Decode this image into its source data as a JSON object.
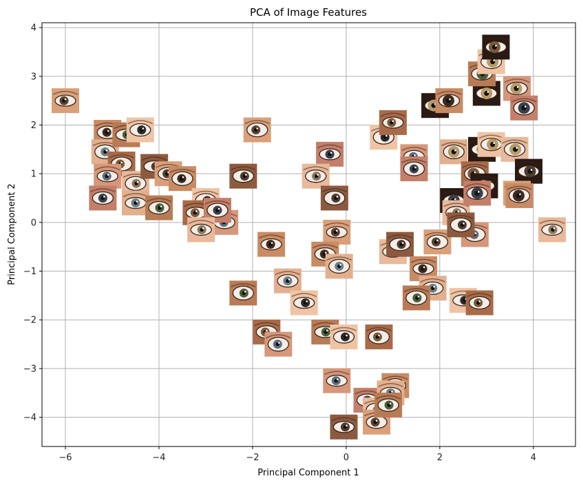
{
  "chart_data": {
    "type": "scatter",
    "title": "PCA of Image Features",
    "xlabel": "Principal Component 1",
    "ylabel": "Principal Component 2",
    "xlim": [
      -6.5,
      4.9
    ],
    "ylim": [
      -4.6,
      4.1
    ],
    "xticks": [
      -6,
      -4,
      -2,
      0,
      2,
      4
    ],
    "yticks": [
      -4,
      -3,
      -2,
      -1,
      0,
      1,
      2,
      3,
      4
    ],
    "grid": true,
    "marker": "eye-image-thumbnail",
    "points": [
      {
        "x": -6.0,
        "y": 2.5
      },
      {
        "x": -5.1,
        "y": 1.85
      },
      {
        "x": -5.15,
        "y": 1.45
      },
      {
        "x": -4.7,
        "y": 1.8
      },
      {
        "x": -4.4,
        "y": 1.9
      },
      {
        "x": -4.8,
        "y": 1.2
      },
      {
        "x": -5.1,
        "y": 0.95
      },
      {
        "x": -5.2,
        "y": 0.5
      },
      {
        "x": -4.5,
        "y": 0.8
      },
      {
        "x": -4.1,
        "y": 1.15
      },
      {
        "x": -3.8,
        "y": 1.0
      },
      {
        "x": -3.5,
        "y": 0.9
      },
      {
        "x": -4.5,
        "y": 0.4
      },
      {
        "x": -4.0,
        "y": 0.3
      },
      {
        "x": -3.0,
        "y": 0.45
      },
      {
        "x": -3.2,
        "y": 0.2
      },
      {
        "x": -2.6,
        "y": 0.0
      },
      {
        "x": -2.75,
        "y": 0.25
      },
      {
        "x": -3.1,
        "y": -0.15
      },
      {
        "x": -2.2,
        "y": 0.95
      },
      {
        "x": -1.9,
        "y": 1.9
      },
      {
        "x": -1.6,
        "y": -0.45
      },
      {
        "x": -1.25,
        "y": -1.2
      },
      {
        "x": -2.2,
        "y": -1.45
      },
      {
        "x": -0.9,
        "y": -1.65
      },
      {
        "x": -1.7,
        "y": -2.25
      },
      {
        "x": -1.45,
        "y": -2.5
      },
      {
        "x": -0.35,
        "y": 1.4
      },
      {
        "x": -0.65,
        "y": 0.95
      },
      {
        "x": -0.25,
        "y": 0.5
      },
      {
        "x": -0.2,
        "y": -0.2
      },
      {
        "x": -0.45,
        "y": -0.65
      },
      {
        "x": -0.15,
        "y": -0.9
      },
      {
        "x": -0.45,
        "y": -2.25
      },
      {
        "x": -0.05,
        "y": -2.35
      },
      {
        "x": 0.7,
        "y": -2.35
      },
      {
        "x": -0.2,
        "y": -3.25
      },
      {
        "x": 0.45,
        "y": -3.65
      },
      {
        "x": 0.65,
        "y": -3.85
      },
      {
        "x": -0.05,
        "y": -4.2
      },
      {
        "x": 0.65,
        "y": -4.1
      },
      {
        "x": 1.05,
        "y": -3.35
      },
      {
        "x": 0.95,
        "y": -3.5
      },
      {
        "x": 0.9,
        "y": -3.75
      },
      {
        "x": 0.8,
        "y": 1.75
      },
      {
        "x": 1.0,
        "y": 2.05
      },
      {
        "x": 1.45,
        "y": 1.35
      },
      {
        "x": 1.45,
        "y": 1.1
      },
      {
        "x": 1.0,
        "y": -0.6
      },
      {
        "x": 1.15,
        "y": -0.45
      },
      {
        "x": 1.95,
        "y": -0.4
      },
      {
        "x": 1.65,
        "y": -0.95
      },
      {
        "x": 1.85,
        "y": -1.35
      },
      {
        "x": 1.5,
        "y": -1.55
      },
      {
        "x": 2.5,
        "y": -1.6
      },
      {
        "x": 2.85,
        "y": -1.65
      },
      {
        "x": 2.75,
        "y": -0.25
      },
      {
        "x": 2.3,
        "y": 0.45
      },
      {
        "x": 2.35,
        "y": 0.2
      },
      {
        "x": 2.45,
        "y": -0.05
      },
      {
        "x": 1.9,
        "y": 2.4
      },
      {
        "x": 2.2,
        "y": 2.5
      },
      {
        "x": 2.3,
        "y": 1.45
      },
      {
        "x": 2.9,
        "y": 1.5
      },
      {
        "x": 3.1,
        "y": 1.6
      },
      {
        "x": 2.75,
        "y": 1.0
      },
      {
        "x": 2.95,
        "y": 0.75
      },
      {
        "x": 2.8,
        "y": 0.6
      },
      {
        "x": 3.6,
        "y": 1.5
      },
      {
        "x": 3.9,
        "y": 1.05
      },
      {
        "x": 3.65,
        "y": 0.6
      },
      {
        "x": 3.7,
        "y": 0.55
      },
      {
        "x": 3.0,
        "y": 2.65
      },
      {
        "x": 2.9,
        "y": 3.05
      },
      {
        "x": 3.1,
        "y": 3.3
      },
      {
        "x": 3.2,
        "y": 3.6
      },
      {
        "x": 3.65,
        "y": 2.75
      },
      {
        "x": 3.8,
        "y": 2.35
      },
      {
        "x": 4.4,
        "y": -0.15
      }
    ]
  }
}
